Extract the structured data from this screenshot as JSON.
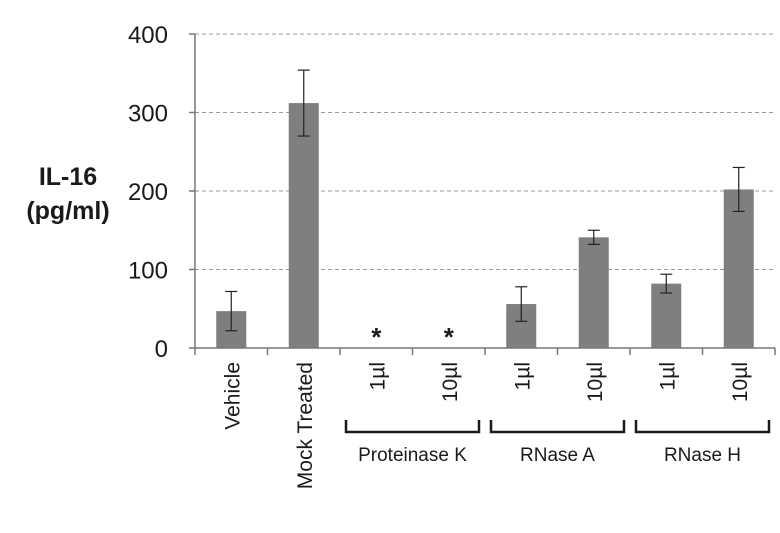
{
  "chart_data": {
    "type": "bar",
    "ylabel_lines": [
      "IL-16",
      "(pg/ml)"
    ],
    "ylim": [
      0,
      400
    ],
    "yticks": [
      0,
      100,
      200,
      300,
      400
    ],
    "grid": true,
    "categories": [
      "Vehicle",
      "Mock Treated",
      "1µl",
      "10µl",
      "1µl",
      "10µl",
      "1µl",
      "10µl"
    ],
    "values": [
      47,
      312,
      0,
      0,
      56,
      141,
      82,
      202
    ],
    "error": [
      25,
      42,
      null,
      null,
      22,
      9,
      12,
      28
    ],
    "annotations": [
      "",
      "",
      "*",
      "*",
      "",
      "",
      "",
      ""
    ],
    "groups": [
      {
        "label": "Proteinase K",
        "members": [
          2,
          3
        ]
      },
      {
        "label": "RNase A",
        "members": [
          4,
          5
        ]
      },
      {
        "label": "RNase H",
        "members": [
          6,
          7
        ]
      }
    ],
    "colors": {
      "bar": "#7f7f7f",
      "grid": "#9a9a9a",
      "axis": "#777777",
      "text": "#1a1a1a"
    }
  }
}
